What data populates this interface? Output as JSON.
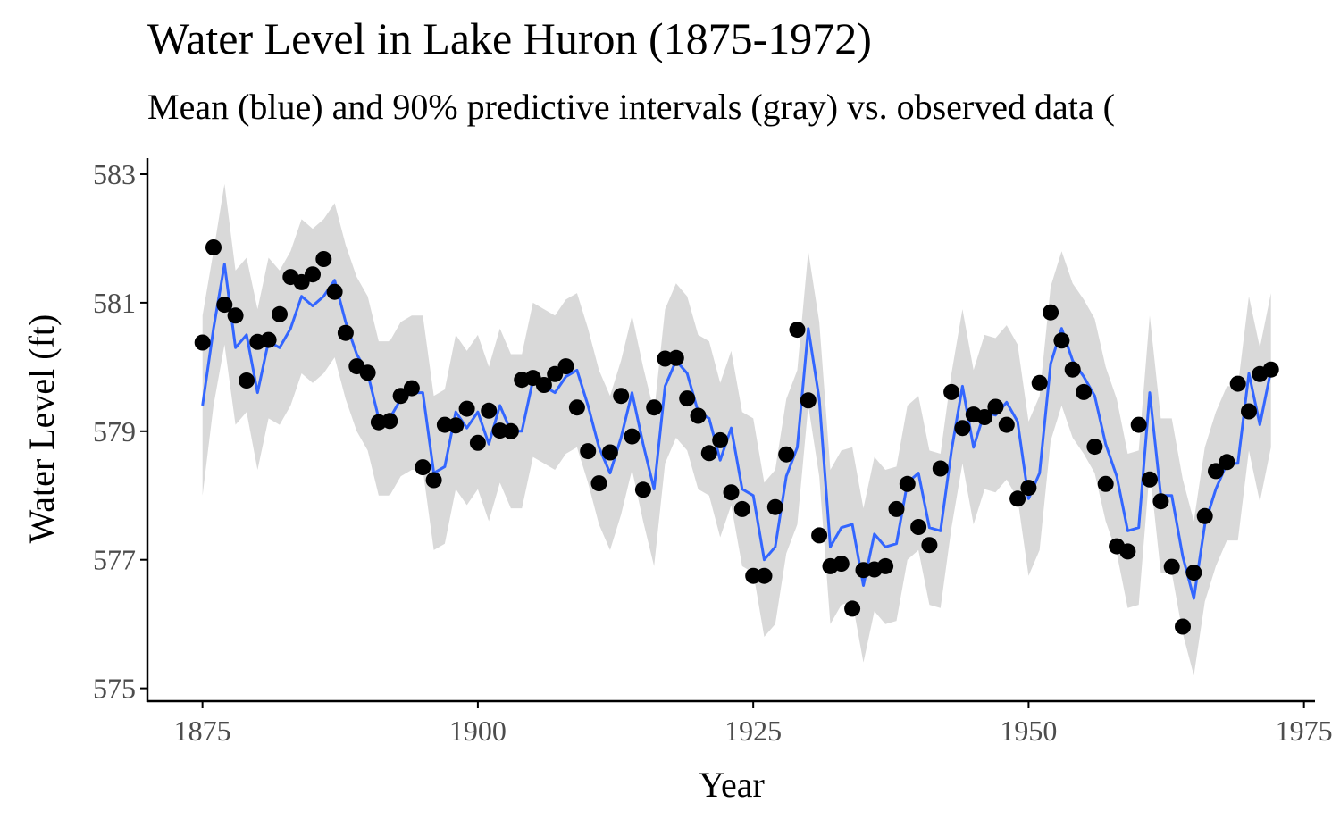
{
  "chart_data": {
    "type": "line",
    "title": "Water Level in Lake Huron (1875-1972)",
    "subtitle": "Mean (blue) and 90% predictive intervals (gray) vs. observed data (",
    "xlabel": "Year",
    "ylabel": "Water Level (ft)",
    "xlim": [
      1870,
      1976
    ],
    "ylim": [
      574.8,
      583.25
    ],
    "x_ticks": [
      1875,
      1900,
      1925,
      1950,
      1975
    ],
    "y_ticks": [
      575,
      577,
      579,
      581,
      583
    ],
    "grid": false,
    "legend": "none",
    "colors": {
      "mean": "#3366FF",
      "interval": "#D9D9D9",
      "observed": "#000000",
      "axis": "#000000",
      "tick_label": "#4D4D4D"
    },
    "x": [
      1875,
      1876,
      1877,
      1878,
      1879,
      1880,
      1881,
      1882,
      1883,
      1884,
      1885,
      1886,
      1887,
      1888,
      1889,
      1890,
      1891,
      1892,
      1893,
      1894,
      1895,
      1896,
      1897,
      1898,
      1899,
      1900,
      1901,
      1902,
      1903,
      1904,
      1905,
      1906,
      1907,
      1908,
      1909,
      1910,
      1911,
      1912,
      1913,
      1914,
      1915,
      1916,
      1917,
      1918,
      1919,
      1920,
      1921,
      1922,
      1923,
      1924,
      1925,
      1926,
      1927,
      1928,
      1929,
      1930,
      1931,
      1932,
      1933,
      1934,
      1935,
      1936,
      1937,
      1938,
      1939,
      1940,
      1941,
      1942,
      1943,
      1944,
      1945,
      1946,
      1947,
      1948,
      1949,
      1950,
      1951,
      1952,
      1953,
      1954,
      1955,
      1956,
      1957,
      1958,
      1959,
      1960,
      1961,
      1962,
      1963,
      1964,
      1965,
      1966,
      1967,
      1968,
      1969,
      1970,
      1971,
      1972
    ],
    "series": [
      {
        "name": "Observed",
        "role": "observed",
        "values": [
          580.38,
          581.86,
          580.97,
          580.8,
          579.79,
          580.39,
          580.42,
          580.82,
          581.4,
          581.32,
          581.44,
          581.68,
          581.17,
          580.53,
          580.01,
          579.91,
          579.14,
          579.16,
          579.55,
          579.67,
          578.44,
          578.24,
          579.1,
          579.09,
          579.35,
          578.82,
          579.32,
          579.01,
          579.0,
          579.8,
          579.83,
          579.72,
          579.89,
          580.01,
          579.37,
          578.69,
          578.19,
          578.67,
          579.55,
          578.92,
          578.09,
          579.37,
          580.13,
          580.14,
          579.51,
          579.24,
          578.66,
          578.86,
          578.05,
          577.79,
          576.75,
          576.75,
          577.82,
          578.64,
          580.58,
          579.48,
          577.38,
          576.9,
          576.94,
          576.24,
          576.84,
          576.85,
          576.9,
          577.79,
          578.18,
          577.51,
          577.23,
          578.42,
          579.61,
          579.05,
          579.26,
          579.22,
          579.38,
          579.1,
          577.95,
          578.12,
          579.75,
          580.85,
          580.41,
          579.96,
          579.61,
          578.76,
          578.18,
          577.21,
          577.13,
          579.1,
          578.25,
          577.91,
          576.89,
          575.96,
          576.8,
          577.68,
          578.38,
          578.52,
          579.74,
          579.31,
          579.89,
          579.96
        ]
      },
      {
        "name": "Mean",
        "role": "mean",
        "values": [
          579.4,
          580.6,
          581.6,
          580.3,
          580.5,
          579.6,
          580.4,
          580.3,
          580.6,
          581.1,
          580.95,
          581.1,
          581.35,
          580.7,
          580.2,
          579.9,
          579.2,
          579.2,
          579.5,
          579.6,
          579.6,
          578.35,
          578.45,
          579.3,
          579.05,
          579.3,
          578.8,
          579.4,
          579.0,
          579.0,
          579.8,
          579.7,
          579.6,
          579.85,
          579.95,
          579.4,
          578.75,
          578.35,
          578.9,
          579.6,
          578.8,
          578.1,
          579.7,
          580.1,
          579.9,
          579.3,
          579.2,
          578.55,
          579.05,
          578.1,
          578.0,
          577.0,
          577.2,
          578.3,
          578.75,
          580.6,
          579.5,
          577.2,
          577.5,
          577.55,
          576.6,
          577.4,
          577.2,
          577.25,
          578.2,
          578.35,
          577.5,
          577.45,
          578.7,
          579.7,
          578.75,
          579.3,
          579.25,
          579.45,
          579.15,
          577.95,
          578.35,
          580.05,
          580.6,
          580.1,
          579.85,
          579.55,
          578.8,
          578.3,
          577.45,
          577.5,
          579.6,
          578.0,
          578.0,
          577.05,
          576.4,
          577.55,
          578.1,
          578.5,
          578.5,
          579.9,
          579.1,
          579.95
        ]
      },
      {
        "name": "Upper 90%",
        "role": "interval_upper",
        "values": [
          580.8,
          581.8,
          582.85,
          581.5,
          581.7,
          580.9,
          581.7,
          581.5,
          581.8,
          582.3,
          582.15,
          582.3,
          582.55,
          581.9,
          581.4,
          581.1,
          580.4,
          580.4,
          580.7,
          580.8,
          580.8,
          579.55,
          579.65,
          580.5,
          580.25,
          580.5,
          580.0,
          580.6,
          580.2,
          580.2,
          581.0,
          580.9,
          580.8,
          581.05,
          581.15,
          580.6,
          579.95,
          579.55,
          580.1,
          580.8,
          580.0,
          579.3,
          580.9,
          581.3,
          581.1,
          580.5,
          580.4,
          579.75,
          580.25,
          579.3,
          579.2,
          578.2,
          578.4,
          579.5,
          579.95,
          581.8,
          580.7,
          578.4,
          578.7,
          578.75,
          577.8,
          578.6,
          578.4,
          578.45,
          579.4,
          579.55,
          578.7,
          578.65,
          579.9,
          580.9,
          579.95,
          580.5,
          580.45,
          580.65,
          580.35,
          579.15,
          579.55,
          581.25,
          581.8,
          581.3,
          581.05,
          580.75,
          580.0,
          579.5,
          578.65,
          578.7,
          580.8,
          579.2,
          579.2,
          578.25,
          577.6,
          578.75,
          579.3,
          579.7,
          579.7,
          581.1,
          580.3,
          581.15
        ]
      },
      {
        "name": "Lower 90%",
        "role": "interval_lower",
        "values": [
          578.0,
          579.4,
          580.35,
          579.1,
          579.3,
          578.4,
          579.2,
          579.1,
          579.4,
          579.9,
          579.75,
          579.9,
          580.15,
          579.5,
          579.0,
          578.7,
          578.0,
          578.0,
          578.3,
          578.4,
          578.4,
          577.15,
          577.25,
          578.1,
          577.85,
          578.1,
          577.6,
          578.2,
          577.8,
          577.8,
          578.6,
          578.5,
          578.4,
          578.65,
          578.75,
          578.2,
          577.55,
          577.15,
          577.7,
          578.4,
          577.6,
          576.9,
          578.5,
          578.9,
          578.7,
          578.1,
          578.0,
          577.35,
          577.85,
          576.9,
          576.8,
          575.8,
          576.0,
          577.1,
          577.55,
          579.4,
          578.3,
          576.0,
          576.3,
          576.35,
          575.4,
          576.2,
          576.0,
          576.05,
          577.0,
          577.15,
          576.3,
          576.25,
          577.5,
          578.5,
          577.55,
          578.1,
          578.05,
          578.25,
          577.95,
          576.75,
          577.15,
          578.85,
          579.4,
          578.9,
          578.65,
          578.35,
          577.6,
          577.1,
          576.25,
          576.3,
          578.4,
          576.8,
          576.8,
          575.85,
          575.2,
          576.35,
          576.9,
          577.3,
          577.3,
          578.7,
          577.9,
          578.75
        ]
      }
    ]
  }
}
